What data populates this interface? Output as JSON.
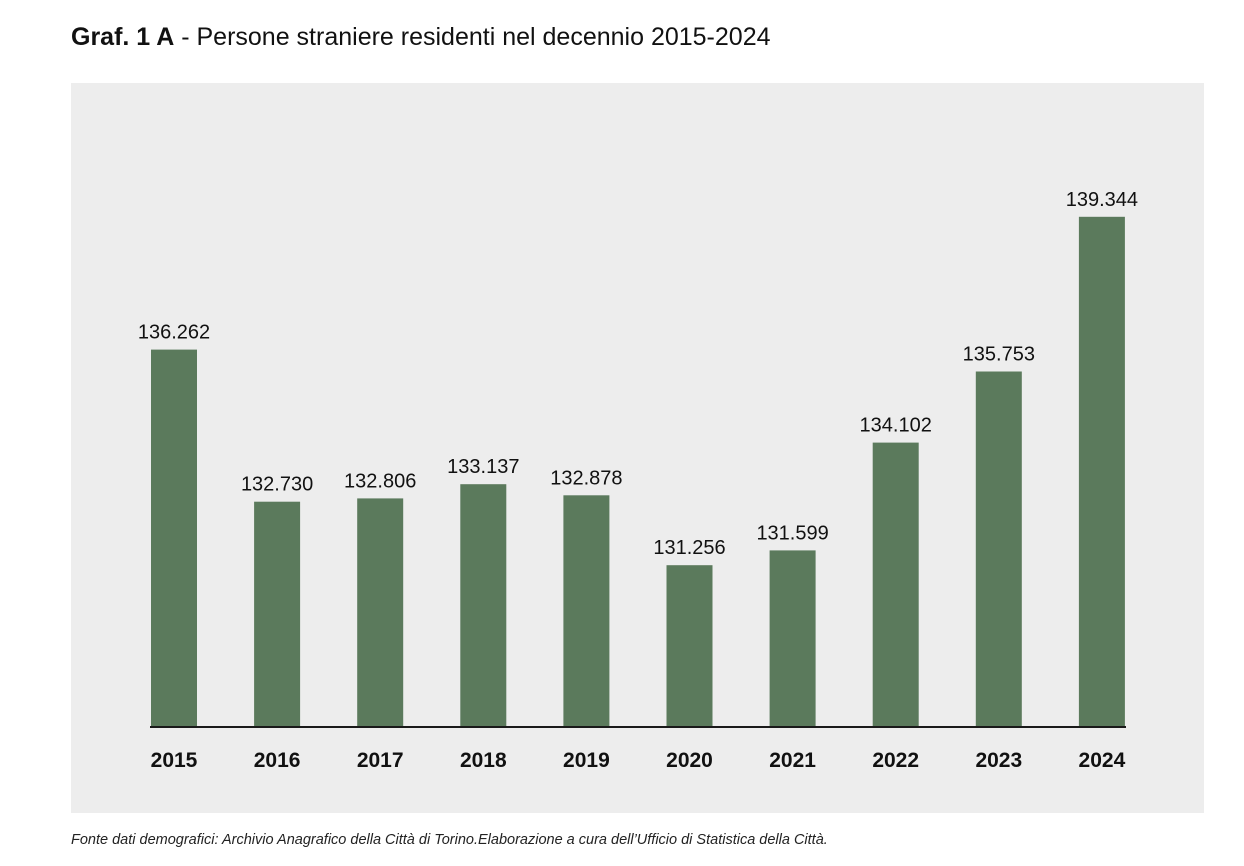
{
  "title": {
    "label": "Graf. 1 A",
    "separator": " - ",
    "text": "Persone straniere residenti nel decennio 2015-2024"
  },
  "source": "Fonte dati demografici: Archivio Anagrafico della Città di Torino.Elaborazione a cura dell’Ufficio di Statistica della Città.",
  "colors": {
    "bar": "#5b7a5c",
    "panel_background": "#ededed",
    "axis": "#1a1a1a"
  },
  "chart_data": {
    "type": "bar",
    "title": "Persone straniere residenti nel decennio 2015-2024",
    "xlabel": "",
    "ylabel": "",
    "categories": [
      "2015",
      "2016",
      "2017",
      "2018",
      "2019",
      "2020",
      "2021",
      "2022",
      "2023",
      "2024"
    ],
    "values": [
      136262,
      132730,
      132806,
      133137,
      132878,
      131256,
      131599,
      134102,
      135753,
      139344
    ],
    "value_labels": [
      "136.262",
      "132.730",
      "132.806",
      "133.137",
      "132.878",
      "131.256",
      "131.599",
      "134.102",
      "135.753",
      "139.344"
    ],
    "ylim": [
      127500,
      140500
    ],
    "grid": false,
    "legend": "none"
  }
}
